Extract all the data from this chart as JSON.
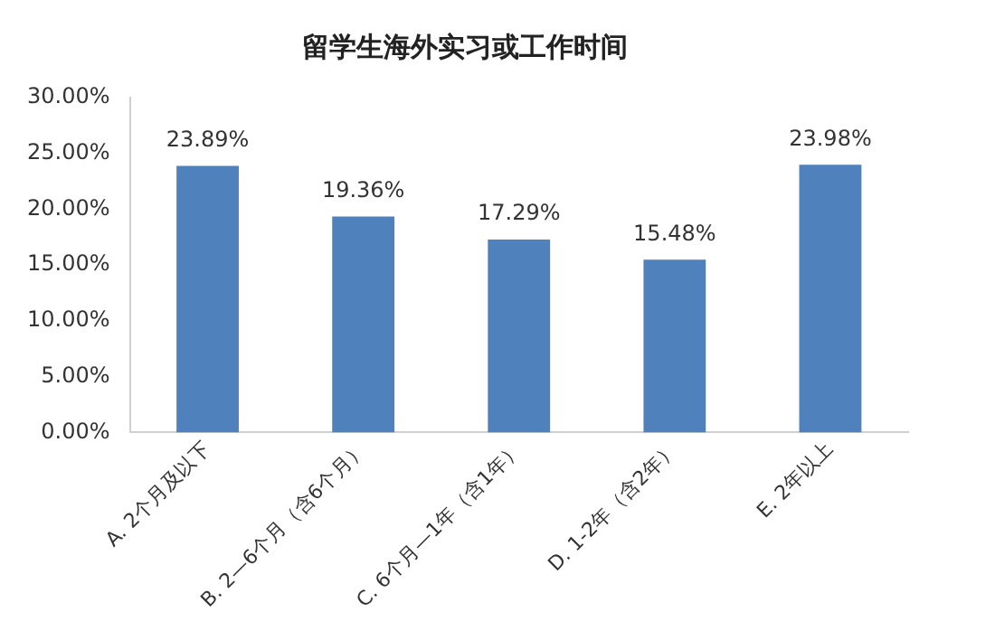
{
  "chart_data": {
    "type": "bar",
    "title": "留学生海外实习或工作时间",
    "categories": [
      "A. 2个月及以下",
      "B. 2—6个月（含6个月）",
      "C. 6个月—1年（含1年）",
      "D. 1-2年（含2年）",
      "E. 2年以上"
    ],
    "values": [
      23.89,
      19.36,
      17.29,
      15.48,
      23.98
    ],
    "value_labels": [
      "23.89%",
      "19.36%",
      "17.29%",
      "15.48%",
      "23.98%"
    ],
    "color": "#4f81bd",
    "ylim": [
      0,
      30
    ],
    "yticks": [
      {
        "value": 0,
        "label": "0.00%"
      },
      {
        "value": 5,
        "label": "5.00%"
      },
      {
        "value": 10,
        "label": "10.00%"
      },
      {
        "value": 15,
        "label": "15.00%"
      },
      {
        "value": 20,
        "label": "20.00%"
      },
      {
        "value": 25,
        "label": "25.00%"
      },
      {
        "value": 30,
        "label": "30.00%"
      }
    ],
    "grid": false
  }
}
